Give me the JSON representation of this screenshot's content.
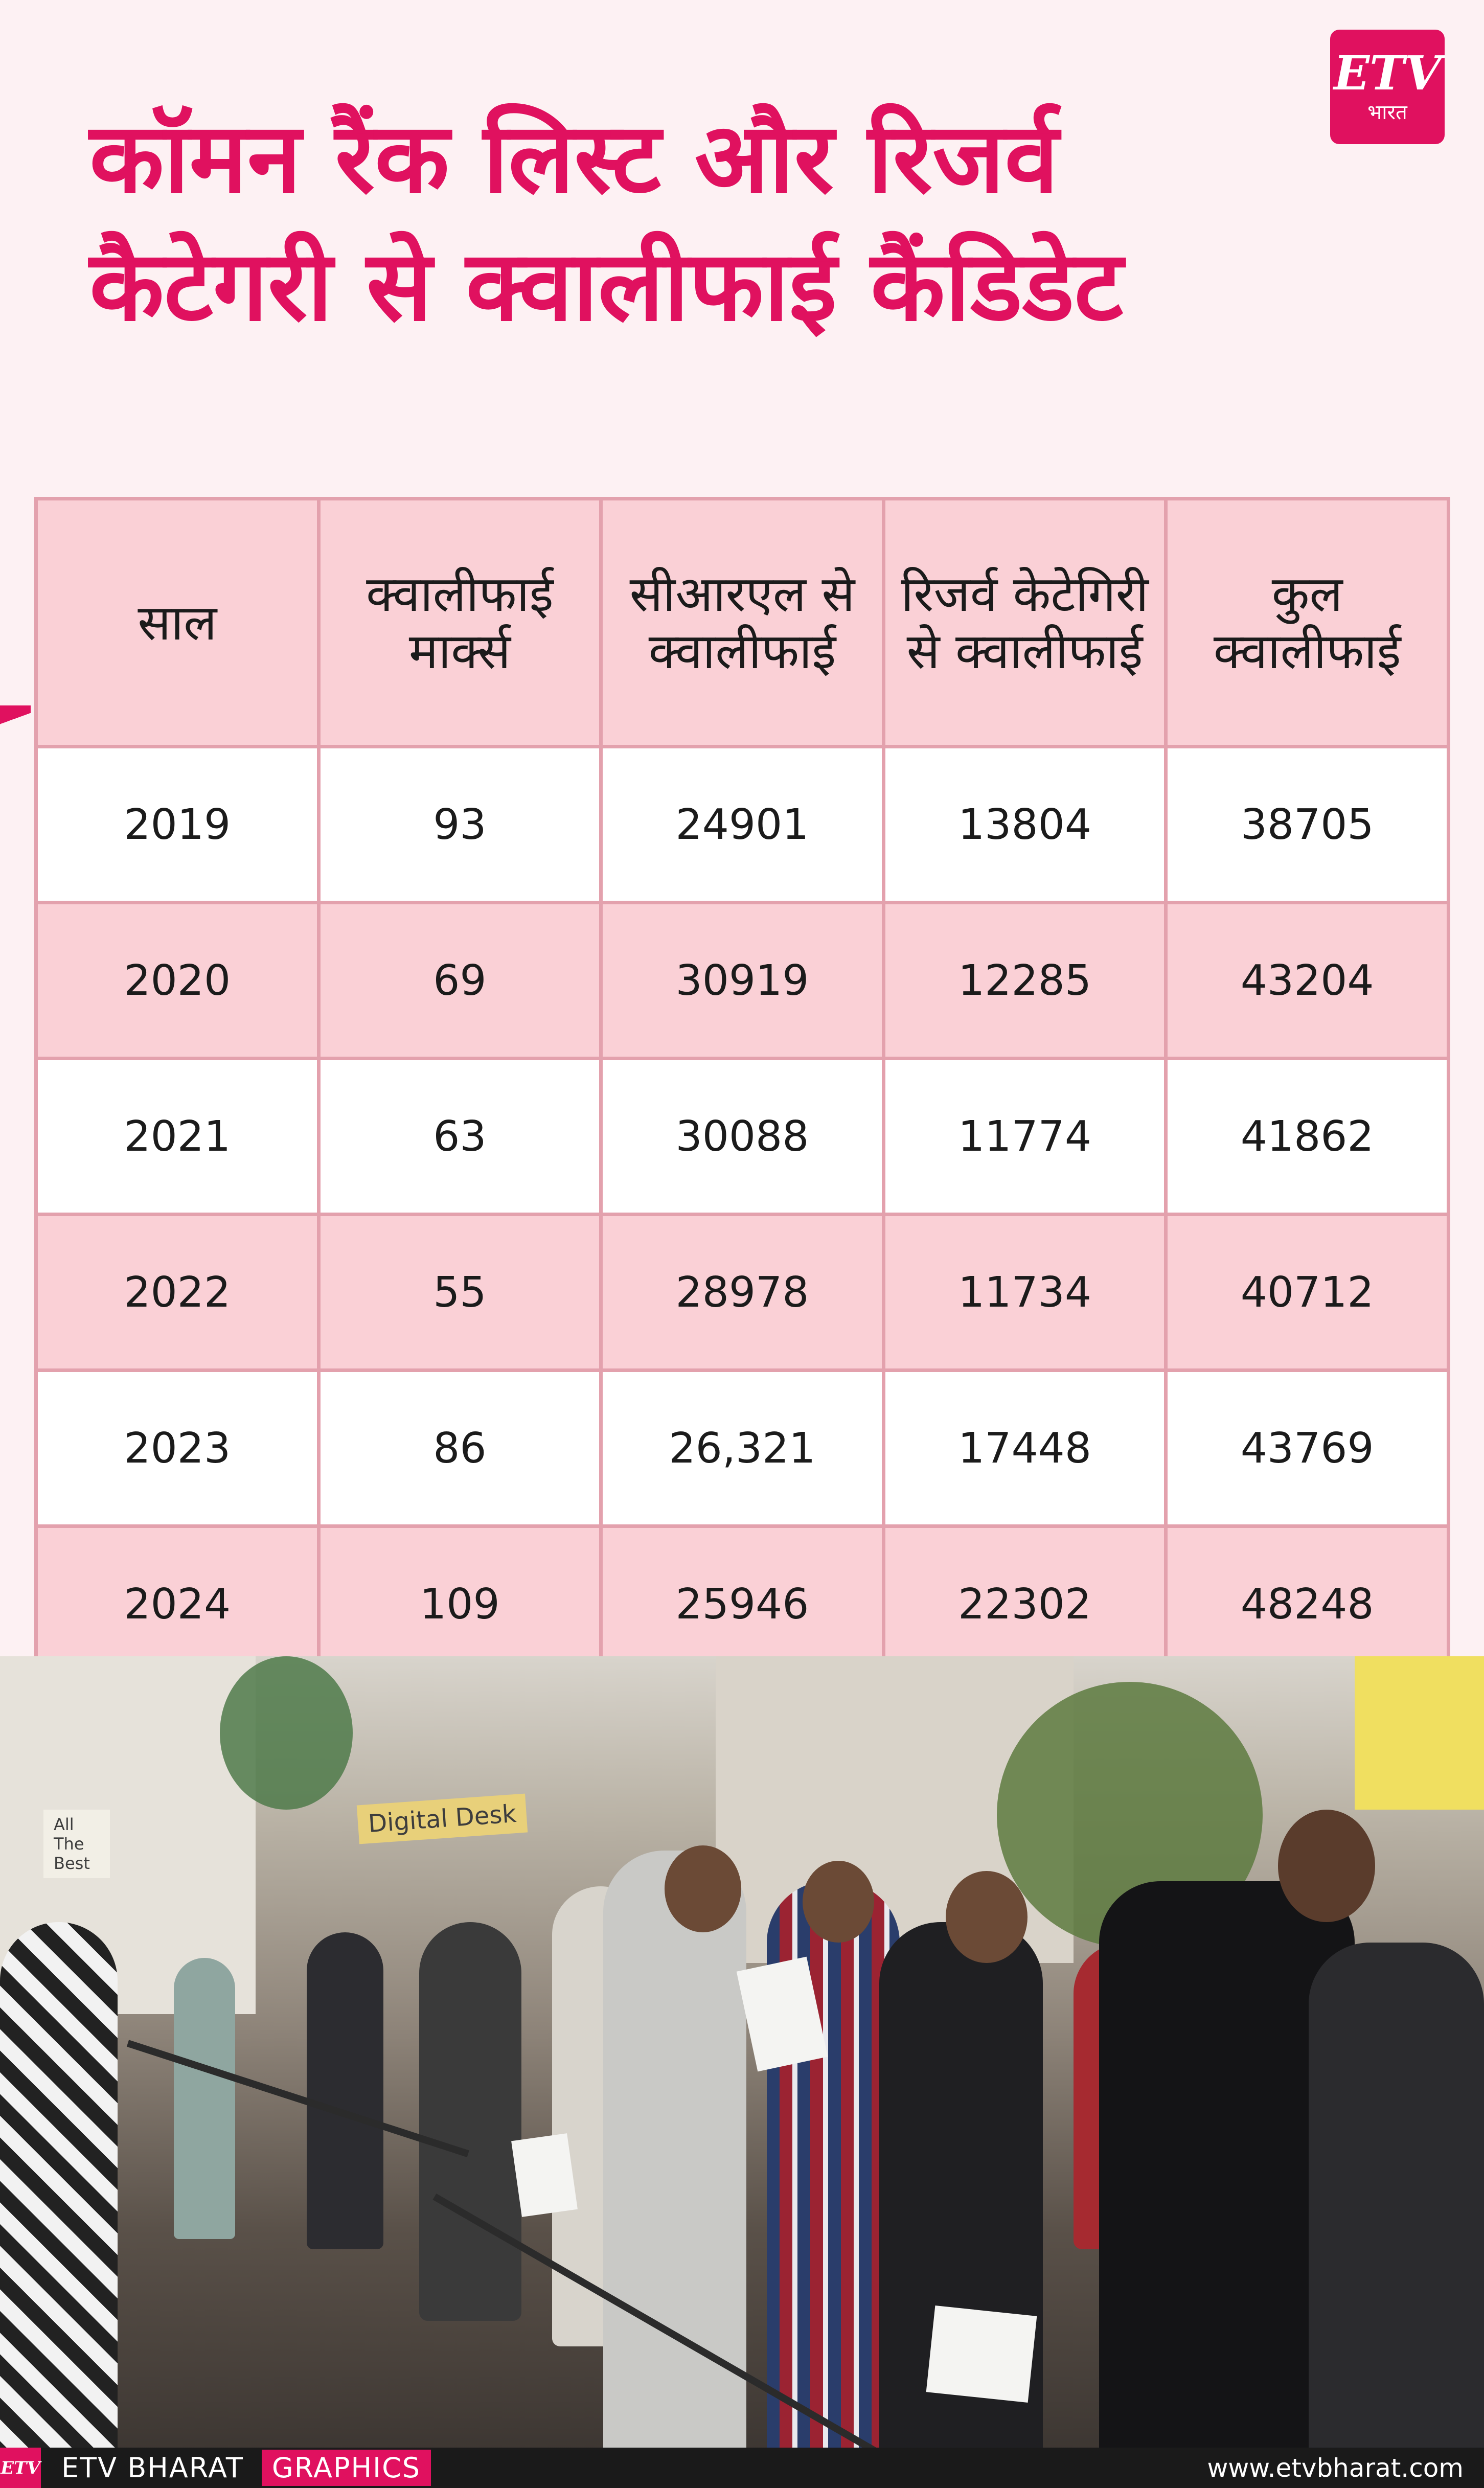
{
  "header": {
    "title_line1": "कॉमन रैंक लिस्ट और रिजर्व",
    "title_line2": "कैटेगरी से क्वालीफाई कैंडिडेट",
    "logo_top": "ETV",
    "logo_bottom": "भारत",
    "accent_color": "#e0115f"
  },
  "chart_data": {
    "type": "table",
    "columns": [
      "साल",
      "क्वालीफाई मार्क्स",
      "सीआरएल से क्वालीफाई",
      "रिजर्व केटेगिरी से क्वालीफाई",
      "कुल क्वालीफाई"
    ],
    "rows": [
      [
        "2019",
        "93",
        "24901",
        "13804",
        "38705"
      ],
      [
        "2020",
        "69",
        "30919",
        "12285",
        "43204"
      ],
      [
        "2021",
        "63",
        "30088",
        "11774",
        "41862"
      ],
      [
        "2022",
        "55",
        "28978",
        "11734",
        "40712"
      ],
      [
        "2023",
        "86",
        "26,321",
        "17448",
        "43769"
      ],
      [
        "2024",
        "109",
        "25946",
        "22302",
        "48248"
      ]
    ]
  },
  "photo": {
    "shop_sign": "Digital Desk",
    "board": "All The Best"
  },
  "footer": {
    "logo": "ETV",
    "brand": "ETV BHARAT",
    "graphics": "GRAPHICS",
    "url": "www.etvbharat.com"
  }
}
